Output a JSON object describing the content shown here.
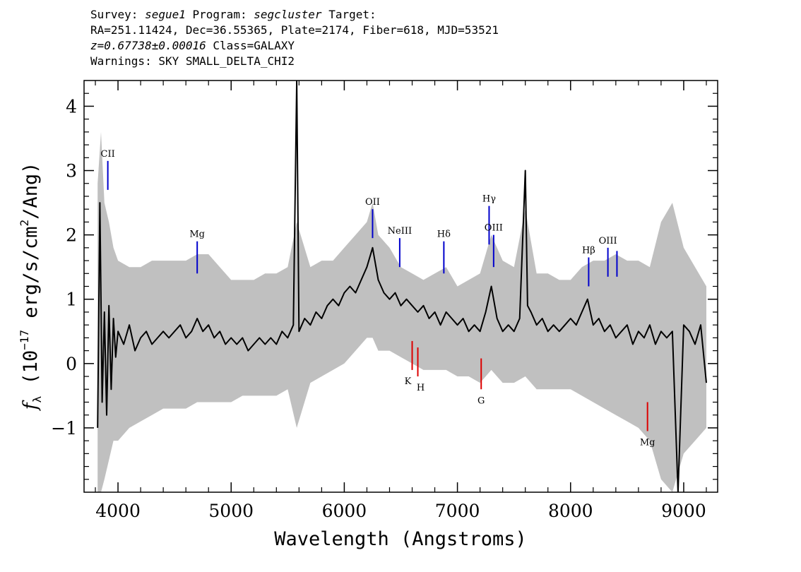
{
  "header": {
    "survey_label": "Survey:",
    "survey_value": "segue1",
    "program_label": "Program:",
    "program_value": "segcluster",
    "target_label": "Target:",
    "line2": "RA=251.11424, Dec=36.55365, Plate=2174, Fiber=618, MJD=53521",
    "redshift": "z=0.67738±0.00016",
    "class": "Class=GALAXY",
    "warnings": "Warnings: SKY SMALL_DELTA_CHI2"
  },
  "chart_data": {
    "type": "line",
    "xlabel": "Wavelength (Angstroms)",
    "ylabel": "f_λ (10^-17 erg/s/cm²/Ang)",
    "xlim": [
      3700,
      9300
    ],
    "ylim": [
      -2.0,
      4.4
    ],
    "xticks": [
      4000,
      5000,
      6000,
      7000,
      8000,
      9000
    ],
    "yticks": [
      -1,
      0,
      1,
      2,
      3,
      4
    ],
    "series": [
      {
        "role": "error/noise",
        "color": "#c0c0c0",
        "x": [
          3820,
          3850,
          3880,
          3920,
          3960,
          4000,
          4100,
          4200,
          4300,
          4400,
          4500,
          4600,
          4700,
          4800,
          4900,
          5000,
          5100,
          5200,
          5300,
          5400,
          5500,
          5580,
          5700,
          5800,
          5900,
          6000,
          6100,
          6200,
          6250,
          6300,
          6400,
          6500,
          6600,
          6700,
          6800,
          6900,
          7000,
          7100,
          7200,
          7300,
          7400,
          7500,
          7600,
          7700,
          7800,
          7900,
          8000,
          8100,
          8200,
          8300,
          8400,
          8500,
          8600,
          8700,
          8800,
          8900,
          9000,
          9100,
          9200
        ],
        "upper": [
          2.8,
          3.6,
          2.5,
          2.2,
          1.8,
          1.6,
          1.5,
          1.5,
          1.6,
          1.6,
          1.6,
          1.6,
          1.7,
          1.7,
          1.5,
          1.3,
          1.3,
          1.3,
          1.4,
          1.4,
          1.5,
          2.2,
          1.5,
          1.6,
          1.6,
          1.8,
          2.0,
          2.2,
          2.5,
          2.0,
          1.8,
          1.5,
          1.4,
          1.3,
          1.4,
          1.5,
          1.2,
          1.3,
          1.4,
          2.0,
          1.6,
          1.5,
          2.4,
          1.4,
          1.4,
          1.3,
          1.3,
          1.5,
          1.6,
          1.6,
          1.7,
          1.6,
          1.6,
          1.5,
          2.2,
          2.5,
          1.8,
          1.5,
          1.2
        ],
        "lower": [
          -2.0,
          -2.0,
          -1.8,
          -1.5,
          -1.2,
          -1.2,
          -1.0,
          -0.9,
          -0.8,
          -0.7,
          -0.7,
          -0.7,
          -0.6,
          -0.6,
          -0.6,
          -0.6,
          -0.5,
          -0.5,
          -0.5,
          -0.5,
          -0.4,
          -1.0,
          -0.3,
          -0.2,
          -0.1,
          0.0,
          0.2,
          0.4,
          0.4,
          0.2,
          0.2,
          0.1,
          0.0,
          -0.1,
          -0.1,
          -0.1,
          -0.2,
          -0.2,
          -0.3,
          -0.1,
          -0.3,
          -0.3,
          -0.2,
          -0.4,
          -0.4,
          -0.4,
          -0.4,
          -0.5,
          -0.6,
          -0.7,
          -0.8,
          -0.9,
          -1.0,
          -1.2,
          -1.8,
          -2.0,
          -1.4,
          -1.2,
          -1.0
        ]
      },
      {
        "role": "flux",
        "color": "#000000",
        "x": [
          3820,
          3840,
          3860,
          3880,
          3900,
          3920,
          3940,
          3960,
          3980,
          4000,
          4050,
          4100,
          4150,
          4200,
          4250,
          4300,
          4350,
          4400,
          4450,
          4500,
          4550,
          4600,
          4650,
          4700,
          4750,
          4800,
          4850,
          4900,
          4950,
          5000,
          5050,
          5100,
          5150,
          5200,
          5250,
          5300,
          5350,
          5400,
          5450,
          5500,
          5550,
          5580,
          5600,
          5650,
          5700,
          5750,
          5800,
          5850,
          5900,
          5950,
          6000,
          6050,
          6100,
          6150,
          6200,
          6250,
          6280,
          6300,
          6350,
          6400,
          6450,
          6500,
          6550,
          6600,
          6650,
          6700,
          6750,
          6800,
          6850,
          6900,
          6950,
          7000,
          7050,
          7100,
          7150,
          7200,
          7250,
          7300,
          7350,
          7400,
          7450,
          7500,
          7550,
          7600,
          7620,
          7650,
          7700,
          7750,
          7800,
          7850,
          7900,
          7950,
          8000,
          8050,
          8100,
          8150,
          8200,
          8250,
          8300,
          8350,
          8400,
          8450,
          8500,
          8550,
          8600,
          8650,
          8700,
          8750,
          8800,
          8850,
          8900,
          8950,
          9000,
          9050,
          9100,
          9150,
          9200
        ],
        "y": [
          -1.0,
          2.5,
          -0.6,
          0.8,
          -0.8,
          0.9,
          -0.4,
          0.7,
          0.1,
          0.5,
          0.3,
          0.6,
          0.2,
          0.4,
          0.5,
          0.3,
          0.4,
          0.5,
          0.4,
          0.5,
          0.6,
          0.4,
          0.5,
          0.7,
          0.5,
          0.6,
          0.4,
          0.5,
          0.3,
          0.4,
          0.3,
          0.4,
          0.2,
          0.3,
          0.4,
          0.3,
          0.4,
          0.3,
          0.5,
          0.4,
          0.6,
          4.4,
          0.5,
          0.7,
          0.6,
          0.8,
          0.7,
          0.9,
          1.0,
          0.9,
          1.1,
          1.2,
          1.1,
          1.3,
          1.5,
          1.8,
          1.5,
          1.3,
          1.1,
          1.0,
          1.1,
          0.9,
          1.0,
          0.9,
          0.8,
          0.9,
          0.7,
          0.8,
          0.6,
          0.8,
          0.7,
          0.6,
          0.7,
          0.5,
          0.6,
          0.5,
          0.8,
          1.2,
          0.7,
          0.5,
          0.6,
          0.5,
          0.7,
          3.0,
          0.9,
          0.8,
          0.6,
          0.7,
          0.5,
          0.6,
          0.5,
          0.6,
          0.7,
          0.6,
          0.8,
          1.0,
          0.6,
          0.7,
          0.5,
          0.6,
          0.4,
          0.5,
          0.6,
          0.3,
          0.5,
          0.4,
          0.6,
          0.3,
          0.5,
          0.4,
          0.5,
          -2.0,
          0.6,
          0.5,
          0.3,
          0.6,
          -0.3
        ]
      }
    ],
    "emission_lines": [
      {
        "label": "CII",
        "wavelength": 3910,
        "y1": 3.15,
        "y2": 2.7
      },
      {
        "label": "Mg",
        "wavelength": 4700,
        "y1": 1.9,
        "y2": 1.4
      },
      {
        "label": "OII",
        "wavelength": 6250,
        "y1": 2.4,
        "y2": 1.95
      },
      {
        "label": "NeIII",
        "wavelength": 6490,
        "y1": 1.95,
        "y2": 1.5
      },
      {
        "label": "Hδ",
        "wavelength": 6880,
        "y1": 1.9,
        "y2": 1.4
      },
      {
        "label": "Hγ",
        "wavelength": 7280,
        "y1": 2.45,
        "y2": 1.85
      },
      {
        "label": "OIII",
        "wavelength": 7320,
        "y1": 2.0,
        "y2": 1.5
      },
      {
        "label": "Hβ",
        "wavelength": 8160,
        "y1": 1.65,
        "y2": 1.2
      },
      {
        "label": "OIII",
        "wavelength": 8330,
        "y1": 1.8,
        "y2": 1.35
      },
      {
        "label": "",
        "wavelength": 8410,
        "y1": 1.75,
        "y2": 1.35
      }
    ],
    "absorption_lines": [
      {
        "label": "K",
        "wavelength": 6600,
        "y1": 0.35,
        "y2": -0.1
      },
      {
        "label": "H",
        "wavelength": 6650,
        "y1": 0.25,
        "y2": -0.2
      },
      {
        "label": "G",
        "wavelength": 7210,
        "y1": 0.08,
        "y2": -0.4
      },
      {
        "label": "Mg",
        "wavelength": 8680,
        "y1": -0.6,
        "y2": -1.05
      }
    ],
    "colors": {
      "emission": "#0000cc",
      "absorption": "#dd0000"
    }
  }
}
